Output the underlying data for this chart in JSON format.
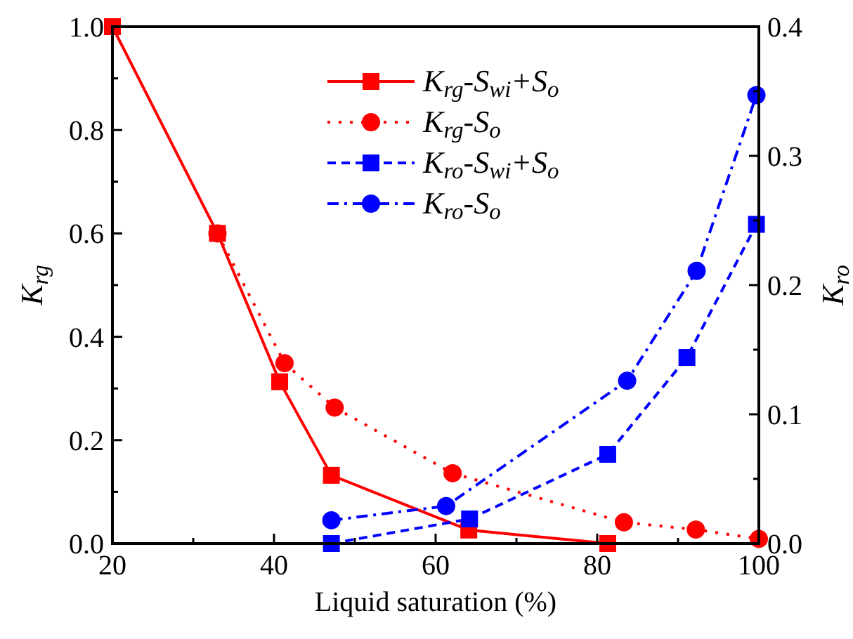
{
  "chart_data": {
    "type": "line",
    "xlabel": "Liquid saturation (%)",
    "ylabel": "K$_{rg}$",
    "y2label": "K$_{ro}$",
    "xlim": [
      20,
      100
    ],
    "xticks": [
      20,
      {
        "value": 30,
        "label": null
      },
      40,
      {
        "value": 50,
        "label": null
      },
      60,
      {
        "value": 70,
        "label": null
      },
      80,
      {
        "value": 90,
        "label": null
      },
      100
    ],
    "ylim": [
      0,
      1
    ],
    "yticks": [
      {
        "value": 0,
        "label": "0.0"
      },
      {
        "value": 0.1,
        "label": null
      },
      {
        "value": 0.2,
        "label": "0.2"
      },
      {
        "value": 0.3,
        "label": null
      },
      {
        "value": 0.4,
        "label": "0.4"
      },
      {
        "value": 0.5,
        "label": null
      },
      {
        "value": 0.6,
        "label": "0.6"
      },
      {
        "value": 0.7,
        "label": null
      },
      {
        "value": 0.8,
        "label": "0.8"
      },
      {
        "value": 0.9,
        "label": null
      },
      {
        "value": 1,
        "label": "1.0"
      }
    ],
    "y2lim": [
      0,
      0.4
    ],
    "y2ticks": [
      {
        "value": 0,
        "label": "0.0"
      },
      {
        "value": 0.05,
        "label": null
      },
      {
        "value": 0.1,
        "label": "0.1"
      },
      {
        "value": 0.15,
        "label": null
      },
      {
        "value": 0.2,
        "label": "0.2"
      },
      {
        "value": 0.25,
        "label": null
      },
      {
        "value": 0.3,
        "label": "0.3"
      },
      {
        "value": 0.35,
        "label": null
      },
      {
        "value": 0.4,
        "label": "0.4"
      }
    ],
    "grid": false,
    "legend": "top right",
    "series": [
      {
        "name": "K$_{rg}$-S$_{wi}$+S$_{o}$",
        "color": "#ff0000",
        "marker": "square",
        "line_style": "solid",
        "x": [
          20,
          33,
          40.7,
          47.1,
          64.1,
          81.3
        ],
        "values": [
          1.0,
          0.6,
          0.313,
          0.132,
          0.026,
          0.0
        ]
      },
      {
        "name": "K$_{rg}$-S$_{o}$",
        "color": "#ff0000",
        "marker": "circle",
        "line_style": "dotted",
        "x": [
          33,
          41.3,
          47.5,
          62.1,
          83.3,
          92.2,
          100
        ],
        "values": [
          0.6,
          0.349,
          0.263,
          0.136,
          0.041,
          0.027,
          0.009
        ]
      },
      {
        "name": "K$_{ro}$-S$_{wi}$+S$_{o}$",
        "color": "#0000ff",
        "marker": "square",
        "line_style": "dashed",
        "axis": "y2",
        "x": [
          47.1,
          64.2,
          81.3,
          91.1,
          99.7
        ],
        "values": [
          0.0,
          0.019,
          0.069,
          0.144,
          0.247
        ]
      },
      {
        "name": "K$_{ro}$-S$_{o}$",
        "color": "#0000ff",
        "marker": "circle",
        "line_style": "dashdot",
        "axis": "y2",
        "x": [
          47.1,
          61.3,
          83.7,
          92.3,
          99.7
        ],
        "values": [
          0.018,
          0.029,
          0.126,
          0.211,
          0.347
        ]
      }
    ]
  }
}
